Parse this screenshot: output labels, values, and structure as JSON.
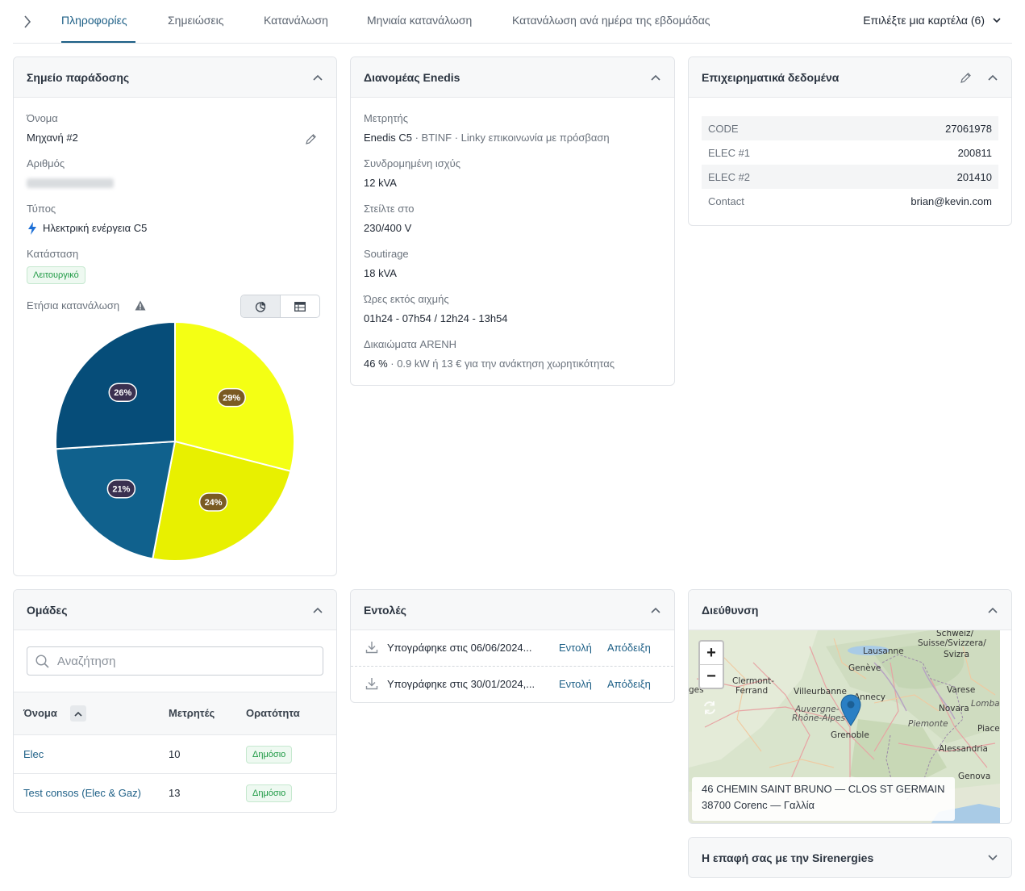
{
  "tabs": {
    "items": [
      "Πληροφορίες",
      "Σημειώσεις",
      "Κατανάλωση",
      "Μηνιαία κατανάλωση",
      "Κατανάλωση ανά ημέρα της εβδομάδας"
    ],
    "select_label": "Επιλέξτε μια καρτέλα (6)"
  },
  "delivery_point": {
    "title": "Σημείο παράδοσης",
    "name_label": "Όνομα",
    "name_value": "Μηχανή #2",
    "number_label": "Αριθμός",
    "type_label": "Τύπος",
    "type_value": "Ηλεκτρική ενέργεια C5",
    "status_label": "Κατάσταση",
    "status_value": "Λειτουργικό",
    "annual_label": "Ετήσια κατανάλωση"
  },
  "chart_data": {
    "type": "pie",
    "values": [
      29,
      24,
      21,
      26
    ],
    "labels": [
      "29%",
      "24%",
      "21%",
      "26%"
    ],
    "colors": [
      "#f4ff14",
      "#e8f000",
      "#10618d",
      "#064d79"
    ],
    "label_colors": [
      "#7a5a22",
      "#7a5a22",
      "#3a3050",
      "#3a3050"
    ]
  },
  "enedis": {
    "title": "Διανομέας Enedis",
    "meter_label": "Μετρητής",
    "meter_value": "Enedis C5",
    "meter_detail": " · BTINF · Linky επικοινωνία με πρόσβαση",
    "power_label": "Συνδρομημένη ισχύς",
    "power_value": "12 kVA",
    "send_label": "Στείλτε στο",
    "send_value": "230/400 V",
    "soutirage_label": "Soutirage",
    "soutirage_value": "18 kVA",
    "offpeak_label": "Ώρες εκτός αιχμής",
    "offpeak_value": "01h24 - 07h54 / 12h24 - 13h54",
    "arenh_label": "Δικαιώματα ARENH",
    "arenh_value": "46 %",
    "arenh_detail": " · 0.9 kW ή 13 € για την ανάκτηση χωρητικότητας"
  },
  "business": {
    "title": "Επιχειρηματικά δεδομένα",
    "rows": [
      {
        "k": "CODE",
        "v": "27061978"
      },
      {
        "k": "ELEC #1",
        "v": "200811"
      },
      {
        "k": "ELEC #2",
        "v": "201410"
      },
      {
        "k": "Contact",
        "v": "brian@kevin.com"
      }
    ]
  },
  "groups": {
    "title": "Ομάδες",
    "search_placeholder": "Αναζήτηση",
    "col_name": "Όνομα",
    "col_meters": "Μετρητές",
    "col_visibility": "Ορατότητα",
    "rows": [
      {
        "name": "Elec",
        "meters": "10",
        "visibility": "Δημόσιο"
      },
      {
        "name": "Test consos (Elec & Gaz)",
        "meters": "13",
        "visibility": "Δημόσιο"
      }
    ]
  },
  "orders": {
    "title": "Εντολές",
    "rows": [
      {
        "text": "Υπογράφηκε στις 06/06/2024...",
        "order": "Εντολή",
        "receipt": "Απόδειξη"
      },
      {
        "text": "Υπογράφηκε στις 30/01/2024,...",
        "order": "Εντολή",
        "receipt": "Απόδειξη"
      }
    ]
  },
  "address": {
    "title": "Διεύθυνση",
    "line1": "46 CHEMIN SAINT BRUNO — CLOS ST GERMAIN",
    "line2": "38700 Corenc — Γαλλία",
    "zoom_in": "+",
    "zoom_out": "−",
    "map_labels": [
      "Schweiz/",
      "Suisse/Svizzera/",
      "Svizra",
      "Lausanne",
      "Genève",
      "Clermont-",
      "Ferrand",
      "Villeurbanne",
      "Annecy",
      "Varese",
      "Novara",
      "Lombar",
      "Auvergne-",
      "Rhône-Alpes",
      "Grenoble",
      "Piemonte",
      "Piacer",
      "Alessandria",
      "Genova",
      "ges"
    ]
  },
  "contact": {
    "title": "Η επαφή σας με την Sirenergies"
  }
}
